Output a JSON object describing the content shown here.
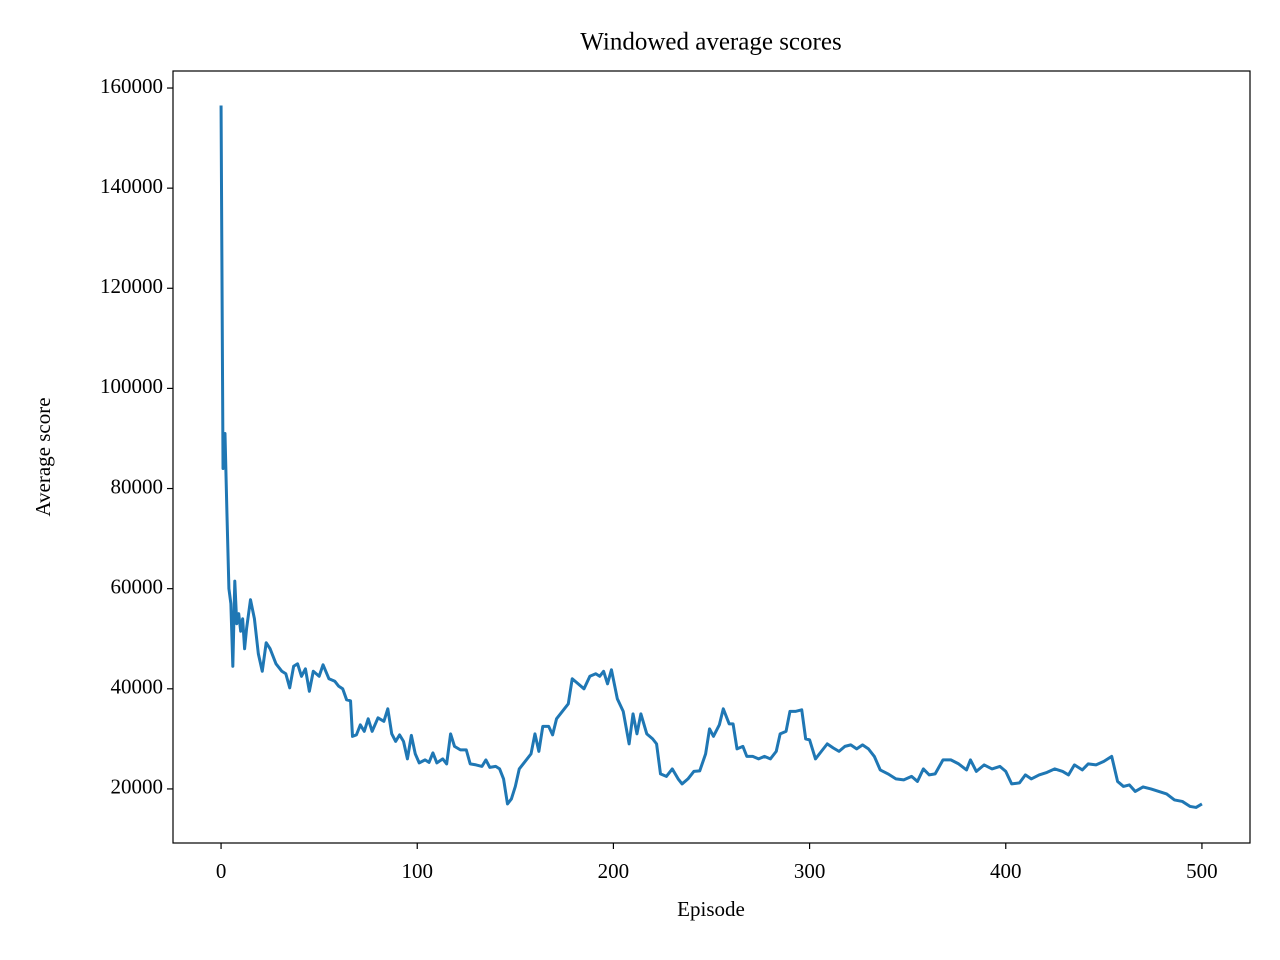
{
  "chart_data": {
    "type": "line",
    "title": "Windowed average scores",
    "xlabel": "Episode",
    "ylabel": "Average score",
    "x": [
      0,
      1,
      2,
      3,
      4,
      5,
      6,
      7,
      8,
      9,
      10,
      11,
      12,
      13,
      15,
      17,
      19,
      21,
      23,
      25,
      28,
      31,
      33,
      35,
      37,
      39,
      41,
      43,
      45,
      47,
      50,
      52,
      55,
      58,
      60,
      62,
      64,
      66,
      67,
      69,
      71,
      73,
      75,
      77,
      80,
      83,
      85,
      87,
      89,
      91,
      93,
      95,
      97,
      99,
      101,
      104,
      106,
      108,
      110,
      113,
      115,
      117,
      119,
      122,
      125,
      127,
      130,
      133,
      135,
      137,
      140,
      142,
      144,
      146,
      148,
      150,
      152,
      155,
      158,
      160,
      162,
      164,
      167,
      169,
      171,
      174,
      177,
      179,
      182,
      185,
      188,
      191,
      193,
      195,
      197,
      199,
      202,
      205,
      208,
      210,
      212,
      214,
      217,
      220,
      222,
      224,
      227,
      230,
      233,
      235,
      238,
      241,
      244,
      247,
      249,
      251,
      254,
      256,
      259,
      261,
      263,
      266,
      268,
      271,
      274,
      277,
      280,
      283,
      285,
      288,
      290,
      293,
      296,
      298,
      300,
      303,
      306,
      309,
      312,
      315,
      318,
      321,
      324,
      327,
      330,
      333,
      336,
      340,
      344,
      348,
      352,
      355,
      358,
      361,
      364,
      368,
      372,
      376,
      380,
      382,
      385,
      389,
      393,
      397,
      400,
      403,
      407,
      410,
      413,
      417,
      421,
      425,
      429,
      432,
      435,
      439,
      442,
      446,
      450,
      454,
      457,
      460,
      463,
      466,
      470,
      474,
      478,
      482,
      486,
      490,
      494,
      497,
      500
    ],
    "series": [
      {
        "color": "#1f77b4",
        "values": [
          156500,
          84000,
          91000,
          75000,
          60000,
          57000,
          44500,
          61500,
          53000,
          55000,
          51500,
          54000,
          48000,
          52000,
          57800,
          54000,
          47000,
          43500,
          49200,
          48000,
          45000,
          43500,
          43000,
          40200,
          44500,
          45000,
          42500,
          44000,
          39500,
          43500,
          42500,
          44800,
          42000,
          41500,
          40500,
          40000,
          37800,
          37600,
          30500,
          30800,
          32800,
          31500,
          34000,
          31500,
          34200,
          33500,
          36000,
          31000,
          29500,
          30800,
          29500,
          26000,
          30700,
          27000,
          25200,
          25800,
          25300,
          27200,
          25200,
          26000,
          25000,
          31000,
          28500,
          27800,
          27800,
          25000,
          24800,
          24500,
          25800,
          24300,
          24500,
          24000,
          22000,
          17000,
          18000,
          20500,
          24000,
          25500,
          27000,
          31000,
          27500,
          32500,
          32500,
          30800,
          34000,
          35500,
          37000,
          42000,
          41000,
          40000,
          42500,
          43000,
          42500,
          43500,
          41000,
          43800,
          38000,
          35500,
          29000,
          35000,
          31000,
          35000,
          31000,
          30000,
          29000,
          23000,
          22500,
          24000,
          22000,
          21000,
          22000,
          23500,
          23600,
          27000,
          32000,
          30500,
          32800,
          36000,
          33000,
          33000,
          28000,
          28500,
          26500,
          26500,
          26000,
          26500,
          26000,
          27500,
          31000,
          31500,
          35500,
          35500,
          35800,
          30000,
          29800,
          26000,
          27500,
          29000,
          28200,
          27500,
          28500,
          28800,
          28000,
          28800,
          28000,
          26500,
          23800,
          23000,
          22000,
          21800,
          22500,
          21500,
          24000,
          22800,
          23000,
          25800,
          25800,
          25000,
          23800,
          25800,
          23500,
          24800,
          24000,
          24500,
          23500,
          21000,
          21200,
          22800,
          22000,
          22800,
          23300,
          24000,
          23500,
          22800,
          24800,
          23800,
          25000,
          24800,
          25500,
          26500,
          21500,
          20500,
          20800,
          19500,
          20400,
          20000,
          19500,
          19000,
          17800,
          17500,
          16500,
          16300,
          17000
        ]
      }
    ],
    "xlim": [
      -24.5,
      524.5
    ],
    "xticks": [
      0,
      100,
      200,
      300,
      400,
      500
    ],
    "ylim": [
      9200,
      163400
    ],
    "yticks": [
      20000,
      40000,
      60000,
      80000,
      100000,
      120000,
      140000,
      160000
    ]
  }
}
